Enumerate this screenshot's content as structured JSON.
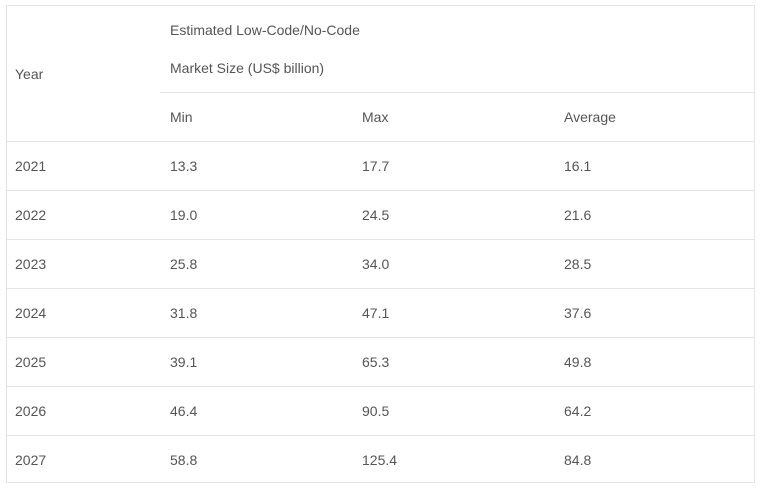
{
  "table": {
    "headers": {
      "year": "Year",
      "group_line1": "Estimated Low-Code/No-Code",
      "group_line2": "Market Size (US$ billion)",
      "min": "Min",
      "max": "Max",
      "average": "Average"
    },
    "rows": [
      {
        "year": "2021",
        "min": "13.3",
        "max": "17.7",
        "average": "16.1"
      },
      {
        "year": "2022",
        "min": "19.0",
        "max": "24.5",
        "average": "21.6"
      },
      {
        "year": "2023",
        "min": "25.8",
        "max": "34.0",
        "average": "28.5"
      },
      {
        "year": "2024",
        "min": "31.8",
        "max": "47.1",
        "average": "37.6"
      },
      {
        "year": "2025",
        "min": "39.1",
        "max": "65.3",
        "average": "49.8"
      },
      {
        "year": "2026",
        "min": "46.4",
        "max": "90.5",
        "average": "64.2"
      },
      {
        "year": "2027",
        "min": "58.8",
        "max": "125.4",
        "average": "84.8"
      }
    ]
  },
  "colors": {
    "text": "#555555",
    "border": "#e4e4e4",
    "background": "#ffffff"
  }
}
